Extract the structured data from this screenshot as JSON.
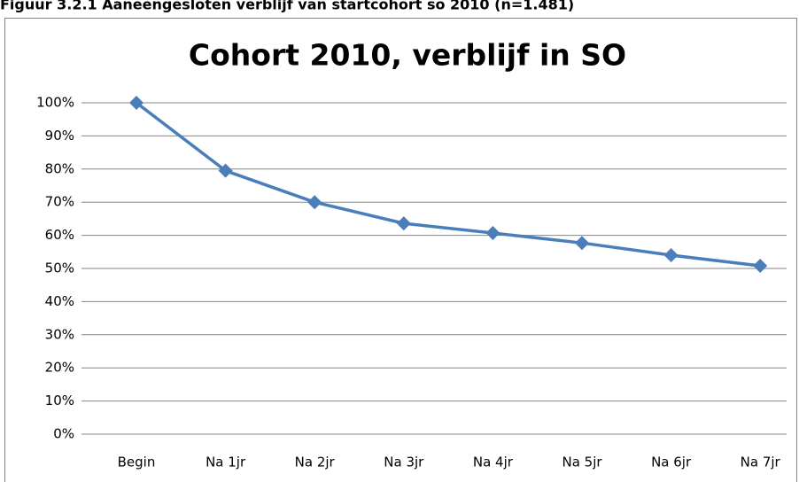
{
  "caption": "Figuur 3.2.1 Aaneengesloten verblijf van startcohort so 2010 (n=1.481)",
  "chart_data": {
    "type": "line",
    "title": "Cohort 2010, verblijf in SO",
    "categories": [
      "Begin",
      "Na 1jr",
      "Na 2jr",
      "Na 3jr",
      "Na 4jr",
      "Na 5jr",
      "Na 6jr",
      "Na 7jr"
    ],
    "series": [
      {
        "name": "Cohort 2010",
        "color": "#4a7ebb",
        "values": [
          100,
          79.5,
          70,
          63.6,
          60.7,
          57.7,
          54,
          50.8
        ]
      }
    ],
    "ylim": [
      0,
      100
    ],
    "yticks": [
      {
        "value": 0,
        "label": "0%"
      },
      {
        "value": 10,
        "label": "10%"
      },
      {
        "value": 20,
        "label": "20%"
      },
      {
        "value": 30,
        "label": "30%"
      },
      {
        "value": 40,
        "label": "40%"
      },
      {
        "value": 50,
        "label": "50%"
      },
      {
        "value": 60,
        "label": "60%"
      },
      {
        "value": 70,
        "label": "70%"
      },
      {
        "value": 80,
        "label": "80%"
      },
      {
        "value": 90,
        "label": "90%"
      },
      {
        "value": 100,
        "label": "100%"
      }
    ],
    "grid": true,
    "legend": false
  }
}
